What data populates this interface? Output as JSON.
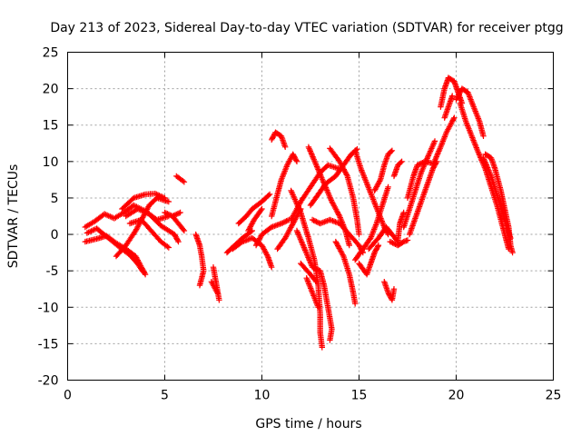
{
  "chart_data": {
    "type": "scatter",
    "title": "Day 213 of 2023, Sidereal Day-to-day VTEC variation (SDTVAR) for receiver ptgg",
    "xlabel": "GPS time / hours",
    "ylabel": "SDTVAR / TECUs",
    "xlim": [
      0,
      25
    ],
    "ylim": [
      -20,
      25
    ],
    "xticks": [
      "0",
      "5",
      "10",
      "15",
      "20",
      "25"
    ],
    "yticks": [
      "-20",
      "-15",
      "-10",
      "-5",
      "0",
      "5",
      "10",
      "15",
      "20",
      "25"
    ],
    "grid": true,
    "marker": "+",
    "color": "#ff0000",
    "tracks": [
      [
        [
          0.9,
          1.0
        ],
        [
          1.4,
          1.8
        ],
        [
          1.9,
          2.8
        ],
        [
          2.4,
          2.2
        ],
        [
          2.9,
          3.0
        ],
        [
          3.4,
          4.0
        ],
        [
          4.0,
          3.2
        ],
        [
          4.6,
          2.0
        ],
        [
          5.2,
          2.5
        ]
      ],
      [
        [
          0.9,
          -1.0
        ],
        [
          1.5,
          -0.6
        ],
        [
          2.0,
          -0.2
        ],
        [
          2.5,
          -1.2
        ],
        [
          3.0,
          -2.0
        ],
        [
          3.5,
          -3.0
        ],
        [
          3.8,
          -4.5
        ],
        [
          4.0,
          -5.5
        ]
      ],
      [
        [
          1.0,
          0.2
        ],
        [
          1.5,
          0.8
        ],
        [
          2.1,
          -0.5
        ],
        [
          2.7,
          -1.8
        ],
        [
          3.2,
          -2.8
        ],
        [
          3.6,
          -4.0
        ],
        [
          3.9,
          -5.2
        ]
      ],
      [
        [
          2.5,
          -3.0
        ],
        [
          3.0,
          -1.5
        ],
        [
          3.5,
          0.5
        ],
        [
          3.9,
          2.5
        ],
        [
          4.2,
          4.0
        ],
        [
          4.6,
          5.0
        ],
        [
          5.2,
          4.5
        ]
      ],
      [
        [
          2.8,
          3.5
        ],
        [
          3.4,
          5.0
        ],
        [
          4.0,
          5.5
        ],
        [
          4.5,
          5.6
        ],
        [
          5.0,
          5.0
        ]
      ],
      [
        [
          3.2,
          1.5
        ],
        [
          3.8,
          2.0
        ],
        [
          4.3,
          0.5
        ],
        [
          4.8,
          -1.0
        ],
        [
          5.2,
          -1.8
        ]
      ],
      [
        [
          3.0,
          2.5
        ],
        [
          3.6,
          3.5
        ],
        [
          4.2,
          2.8
        ],
        [
          4.8,
          1.2
        ],
        [
          5.5,
          0.0
        ],
        [
          5.7,
          -1.0
        ]
      ],
      [
        [
          5.0,
          3.0
        ],
        [
          5.4,
          2.5
        ],
        [
          5.8,
          3.0
        ]
      ],
      [
        [
          5.4,
          2.5
        ],
        [
          5.7,
          1.5
        ],
        [
          6.0,
          0.5
        ]
      ],
      [
        [
          5.6,
          8.0
        ],
        [
          6.0,
          7.2
        ]
      ],
      [
        [
          6.6,
          0.0
        ],
        [
          6.8,
          -1.5
        ],
        [
          6.9,
          -3.0
        ],
        [
          7.0,
          -5.0
        ],
        [
          6.8,
          -7.0
        ]
      ],
      [
        [
          7.5,
          -4.5
        ],
        [
          7.6,
          -6.0
        ],
        [
          7.7,
          -7.5
        ],
        [
          7.8,
          -9.0
        ]
      ],
      [
        [
          7.4,
          -6.5
        ],
        [
          7.7,
          -8.0
        ]
      ],
      [
        [
          8.2,
          -2.5
        ],
        [
          8.6,
          -1.5
        ],
        [
          9.0,
          -0.5
        ],
        [
          9.5,
          0.5
        ]
      ],
      [
        [
          8.5,
          -2.0
        ],
        [
          9.0,
          -1.0
        ],
        [
          9.5,
          -0.5
        ],
        [
          10.0,
          -1.5
        ],
        [
          10.3,
          -3.0
        ],
        [
          10.5,
          -4.5
        ]
      ],
      [
        [
          8.8,
          1.5
        ],
        [
          9.2,
          2.5
        ],
        [
          9.5,
          3.5
        ],
        [
          10.0,
          4.5
        ],
        [
          10.4,
          5.5
        ]
      ],
      [
        [
          9.3,
          0.5
        ],
        [
          9.6,
          2.0
        ],
        [
          10.0,
          3.5
        ]
      ],
      [
        [
          9.7,
          -1.5
        ],
        [
          10.0,
          0.0
        ],
        [
          10.5,
          1.0
        ],
        [
          11.0,
          1.5
        ],
        [
          11.4,
          2.0
        ]
      ],
      [
        [
          10.5,
          2.5
        ],
        [
          10.8,
          5.5
        ],
        [
          11.0,
          7.5
        ],
        [
          11.3,
          9.5
        ],
        [
          11.6,
          11.0
        ],
        [
          11.8,
          10.0
        ]
      ],
      [
        [
          10.5,
          13.0
        ],
        [
          10.7,
          14.0
        ],
        [
          11.0,
          13.5
        ],
        [
          11.2,
          12.0
        ]
      ],
      [
        [
          10.8,
          -2.0
        ],
        [
          11.2,
          -0.5
        ],
        [
          11.6,
          1.5
        ],
        [
          12.0,
          3.5
        ]
      ],
      [
        [
          11.5,
          2.0
        ],
        [
          12.0,
          4.5
        ],
        [
          12.5,
          6.5
        ],
        [
          13.0,
          8.5
        ],
        [
          13.4,
          9.5
        ],
        [
          14.0,
          9.0
        ]
      ],
      [
        [
          11.5,
          6.0
        ],
        [
          12.0,
          3.0
        ],
        [
          12.4,
          -0.5
        ],
        [
          12.7,
          -3.5
        ],
        [
          12.9,
          -7.0
        ],
        [
          13.0,
          -11.0
        ],
        [
          13.0,
          -13.5
        ],
        [
          13.1,
          -15.5
        ]
      ],
      [
        [
          11.8,
          0.5
        ],
        [
          12.2,
          -2.0
        ],
        [
          12.6,
          -4.5
        ],
        [
          13.0,
          -5.0
        ],
        [
          13.2,
          -7.0
        ],
        [
          13.4,
          -10.0
        ],
        [
          13.6,
          -13.0
        ],
        [
          13.5,
          -14.5
        ]
      ],
      [
        [
          12.3,
          -6.0
        ],
        [
          12.6,
          -8.0
        ],
        [
          12.9,
          -10.0
        ]
      ],
      [
        [
          12.0,
          -4.0
        ],
        [
          12.5,
          -5.5
        ],
        [
          12.8,
          -6.5
        ]
      ],
      [
        [
          12.4,
          12.0
        ],
        [
          12.8,
          9.5
        ],
        [
          13.2,
          7.0
        ],
        [
          13.6,
          4.5
        ],
        [
          14.0,
          2.5
        ],
        [
          14.3,
          0.5
        ],
        [
          14.5,
          -1.5
        ]
      ],
      [
        [
          12.5,
          4.0
        ],
        [
          12.9,
          5.5
        ],
        [
          13.3,
          7.0
        ],
        [
          13.8,
          8.0
        ],
        [
          14.2,
          9.5
        ],
        [
          14.6,
          11.0
        ],
        [
          14.9,
          11.7
        ]
      ],
      [
        [
          12.6,
          2.0
        ],
        [
          13.0,
          1.5
        ],
        [
          13.5,
          2.0
        ],
        [
          14.0,
          1.5
        ],
        [
          14.5,
          0.0
        ],
        [
          15.0,
          -1.5
        ],
        [
          15.2,
          -2.5
        ]
      ],
      [
        [
          13.5,
          11.8
        ],
        [
          14.0,
          10.0
        ],
        [
          14.4,
          8.0
        ],
        [
          14.7,
          5.0
        ],
        [
          14.9,
          2.0
        ],
        [
          15.0,
          0.0
        ]
      ],
      [
        [
          13.8,
          -1.0
        ],
        [
          14.2,
          -3.0
        ],
        [
          14.5,
          -5.5
        ],
        [
          14.7,
          -8.0
        ],
        [
          14.8,
          -9.5
        ]
      ],
      [
        [
          14.8,
          -3.5
        ],
        [
          15.2,
          -2.0
        ],
        [
          15.6,
          -0.5
        ],
        [
          15.9,
          1.5
        ],
        [
          16.2,
          4.0
        ],
        [
          16.5,
          6.5
        ]
      ],
      [
        [
          14.8,
          11.5
        ],
        [
          15.1,
          9.0
        ],
        [
          15.4,
          7.0
        ],
        [
          15.7,
          5.0
        ],
        [
          16.0,
          3.0
        ],
        [
          16.3,
          1.0
        ],
        [
          16.5,
          0.0
        ]
      ],
      [
        [
          15.0,
          -4.0
        ],
        [
          15.4,
          -5.5
        ],
        [
          15.6,
          -4.0
        ],
        [
          15.8,
          -2.5
        ],
        [
          16.0,
          -1.5
        ]
      ],
      [
        [
          15.8,
          6.0
        ],
        [
          16.1,
          7.5
        ],
        [
          16.3,
          9.5
        ],
        [
          16.5,
          11.0
        ],
        [
          16.7,
          11.5
        ]
      ],
      [
        [
          15.5,
          -2.0
        ],
        [
          16.0,
          -0.5
        ],
        [
          16.4,
          1.0
        ],
        [
          16.7,
          0.0
        ],
        [
          17.0,
          -1.0
        ]
      ],
      [
        [
          16.3,
          -6.5
        ],
        [
          16.5,
          -8.0
        ],
        [
          16.7,
          -9.0
        ],
        [
          16.8,
          -7.5
        ]
      ],
      [
        [
          16.6,
          -1.0
        ],
        [
          17.0,
          -1.5
        ],
        [
          17.3,
          -1.0
        ],
        [
          17.5,
          -0.8
        ]
      ],
      [
        [
          16.8,
          8.0
        ],
        [
          17.0,
          9.5
        ],
        [
          17.2,
          10.0
        ]
      ],
      [
        [
          17.0,
          -0.8
        ],
        [
          17.1,
          1.5
        ],
        [
          17.3,
          3.0
        ]
      ],
      [
        [
          17.3,
          1.0
        ],
        [
          17.6,
          3.5
        ],
        [
          17.9,
          6.0
        ],
        [
          18.2,
          8.5
        ],
        [
          18.6,
          11.0
        ],
        [
          18.9,
          12.8
        ]
      ],
      [
        [
          17.6,
          0.0
        ],
        [
          18.0,
          3.0
        ],
        [
          18.4,
          6.0
        ],
        [
          18.8,
          9.0
        ],
        [
          19.0,
          10.0
        ]
      ],
      [
        [
          17.5,
          5.0
        ],
        [
          17.8,
          8.0
        ],
        [
          18.0,
          9.5
        ],
        [
          18.4,
          10.0
        ],
        [
          18.7,
          9.8
        ]
      ],
      [
        [
          18.8,
          9.5
        ],
        [
          19.2,
          12.0
        ],
        [
          19.5,
          14.0
        ],
        [
          19.8,
          15.5
        ],
        [
          19.9,
          16.0
        ]
      ],
      [
        [
          19.2,
          17.5
        ],
        [
          19.4,
          20.0
        ],
        [
          19.6,
          21.5
        ],
        [
          19.9,
          21.0
        ],
        [
          20.1,
          19.5
        ],
        [
          20.3,
          18.0
        ]
      ],
      [
        [
          19.4,
          16.0
        ],
        [
          19.6,
          17.5
        ],
        [
          19.8,
          19.0
        ]
      ],
      [
        [
          20.0,
          18.5
        ],
        [
          20.3,
          20.0
        ],
        [
          20.6,
          19.5
        ],
        [
          20.9,
          17.5
        ],
        [
          21.2,
          15.5
        ],
        [
          21.4,
          13.5
        ]
      ],
      [
        [
          20.2,
          18.0
        ],
        [
          20.5,
          15.5
        ],
        [
          20.8,
          13.5
        ],
        [
          21.1,
          11.5
        ],
        [
          21.5,
          9.0
        ],
        [
          21.8,
          6.5
        ],
        [
          22.1,
          4.0
        ],
        [
          22.4,
          1.0
        ],
        [
          22.6,
          -1.0
        ],
        [
          22.7,
          -2.0
        ]
      ],
      [
        [
          21.4,
          10.5
        ],
        [
          21.8,
          8.0
        ],
        [
          22.1,
          5.5
        ],
        [
          22.4,
          3.0
        ],
        [
          22.6,
          1.0
        ],
        [
          22.8,
          -0.5
        ]
      ],
      [
        [
          21.5,
          11.0
        ],
        [
          21.8,
          10.5
        ],
        [
          22.0,
          9.0
        ],
        [
          22.3,
          6.0
        ],
        [
          22.5,
          3.5
        ],
        [
          22.7,
          1.0
        ],
        [
          22.8,
          -1.5
        ],
        [
          22.9,
          -2.5
        ]
      ]
    ]
  }
}
